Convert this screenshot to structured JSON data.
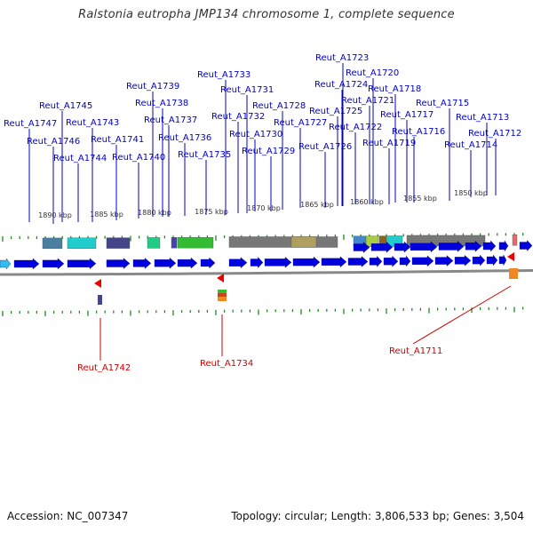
{
  "title": "Ralstonia eutropha JMP134 chromosome 1, complete sequence",
  "footer": {
    "accession": "Accession: NC_007347",
    "info": "Topology: circular; Length: 3,806,533 bp; Genes: 3,504"
  },
  "kbp_labels": [
    "1890 kbp",
    "1885 kbp",
    "1880 kbp",
    "1875 kbp",
    "1870 kbp",
    "1865 kbp",
    "1860 kbp",
    "1855 kbp",
    "1850 kbp"
  ],
  "genes_top": [
    "Reut_A1747",
    "Reut_A1746",
    "Reut_A1745",
    "Reut_A1744",
    "Reut_A1743",
    "Reut_A1741",
    "Reut_A1740",
    "Reut_A1739",
    "Reut_A1738",
    "Reut_A1737",
    "Reut_A1736",
    "Reut_A1735",
    "Reut_A1733",
    "Reut_A1732",
    "Reut_A1731",
    "Reut_A1730",
    "Reut_A1729",
    "Reut_A1728",
    "Reut_A1727",
    "Reut_A1726",
    "Reut_A1725",
    "Reut_A1724",
    "Reut_A1723",
    "Reut_A1722",
    "Reut_A1721",
    "Reut_A1720",
    "Reut_A1719",
    "Reut_A1718",
    "Reut_A1717",
    "Reut_A1716",
    "Reut_A1715",
    "Reut_A1714",
    "Reut_A1713",
    "Reut_A1712"
  ],
  "genes_bottom": [
    "Reut_A1742",
    "Reut_A1734",
    "Reut_A1711"
  ],
  "colors": {
    "forward_gene": "#0000dd",
    "reverse_gene": "#ee0000",
    "top_label": "#0000cc",
    "bottom_label": "#cc0000",
    "tick": "#228822",
    "backbone": "#888888"
  }
}
